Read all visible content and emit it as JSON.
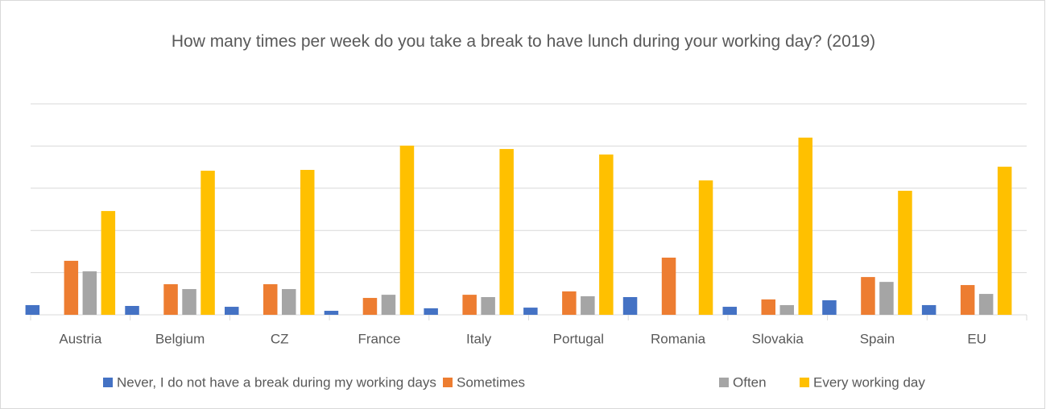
{
  "chart_data": {
    "type": "bar",
    "title": "How many times per week do you take a break to have lunch during your working day? (2019)",
    "categories": [
      "Austria",
      "Belgium",
      "CZ",
      "France",
      "Italy",
      "Portugal",
      "Romania",
      "Slovakia",
      "Spain",
      "EU"
    ],
    "series": [
      {
        "name": "Never, I do not have a break during my working days",
        "color": "#4472c4",
        "values": [
          4.6,
          4.2,
          3.8,
          1.9,
          3.1,
          3.4,
          8.4,
          3.8,
          6.9,
          4.6
        ]
      },
      {
        "name": "Sometimes",
        "color": "#ed7d31",
        "values": [
          25.6,
          14.5,
          14.5,
          8.0,
          9.5,
          11.1,
          27.1,
          7.3,
          17.9,
          14.1
        ]
      },
      {
        "name": "Often",
        "color": "#a5a5a5",
        "values": [
          20.6,
          12.2,
          12.2,
          9.5,
          8.4,
          8.8,
          null,
          4.6,
          15.6,
          9.9
        ]
      },
      {
        "name": "Every working day",
        "color": "#ffc000",
        "values": [
          49.2,
          68.3,
          68.7,
          80.2,
          78.6,
          76.0,
          63.7,
          84.0,
          58.8,
          70.2
        ]
      }
    ],
    "ylim": [
      0,
      100
    ],
    "yticks": [
      0,
      20,
      40,
      60,
      80,
      100
    ],
    "grid": true,
    "legend": "bottom"
  }
}
